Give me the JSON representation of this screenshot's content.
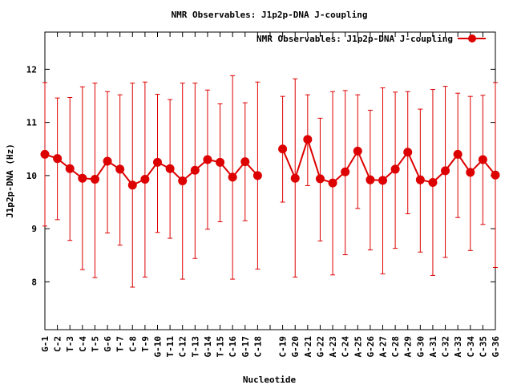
{
  "chart_data": {
    "type": "line",
    "title": "NMR Observables: J1p2p-DNA J-coupling",
    "xlabel": "Nucleotide",
    "ylabel": "J1p2p-DNA (Hz)",
    "ylim": [
      7.1,
      12.7
    ],
    "yticks": [
      8,
      9,
      10,
      11,
      12
    ],
    "legend_position": "top-right",
    "color": "#dd0000",
    "grid": false,
    "categories": [
      "G-1",
      "C-2",
      "T-3",
      "C-4",
      "T-5",
      "G-6",
      "T-7",
      "C-8",
      "T-9",
      "G-10",
      "T-11",
      "C-12",
      "T-13",
      "G-14",
      "T-15",
      "C-16",
      "G-17",
      "C-18",
      "",
      "C-19",
      "G-20",
      "A-21",
      "G-22",
      "A-23",
      "C-24",
      "A-25",
      "G-26",
      "A-27",
      "C-28",
      "A-29",
      "G-30",
      "A-31",
      "C-32",
      "A-33",
      "C-34",
      "C-35",
      "G-36"
    ],
    "series": [
      {
        "name": "NMR Observables: J1p2p-DNA J-coupling",
        "values": [
          10.4,
          10.32,
          10.13,
          9.95,
          9.93,
          10.27,
          10.12,
          9.82,
          9.93,
          10.25,
          10.13,
          9.9,
          10.1,
          10.3,
          10.25,
          9.97,
          10.26,
          10.0,
          null,
          10.5,
          9.95,
          10.68,
          9.94,
          9.86,
          10.07,
          10.46,
          9.92,
          9.91,
          10.12,
          10.44,
          9.92,
          9.87,
          10.09,
          10.4,
          10.06,
          10.3,
          10.01
        ],
        "err_low": [
          9.05,
          9.17,
          8.78,
          8.23,
          8.08,
          8.92,
          8.69,
          7.9,
          8.09,
          8.93,
          8.82,
          8.05,
          8.44,
          8.99,
          9.13,
          8.05,
          9.15,
          8.24,
          null,
          9.5,
          8.09,
          9.81,
          8.77,
          8.13,
          8.51,
          9.38,
          8.6,
          8.15,
          8.63,
          9.28,
          8.56,
          8.12,
          8.46,
          9.21,
          8.59,
          9.08,
          8.27
        ],
        "err_high": [
          11.75,
          11.46,
          11.47,
          11.67,
          11.74,
          11.58,
          11.52,
          11.74,
          11.76,
          11.53,
          11.43,
          11.74,
          11.74,
          11.61,
          11.35,
          11.88,
          11.37,
          11.76,
          null,
          11.49,
          11.82,
          11.52,
          11.08,
          11.58,
          11.6,
          11.52,
          11.23,
          11.65,
          11.57,
          11.58,
          11.25,
          11.62,
          11.68,
          11.55,
          11.49,
          11.51,
          11.75
        ]
      }
    ]
  }
}
